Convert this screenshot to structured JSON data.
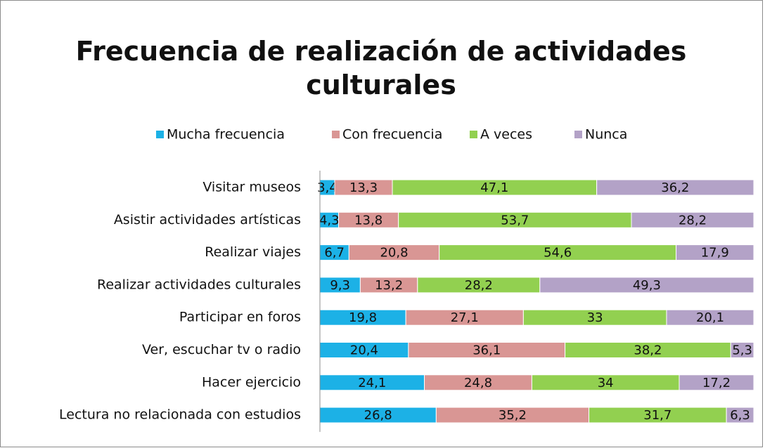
{
  "chart_data": {
    "type": "stacked_bar_horizontal",
    "title": "Frecuencia de realización de actividades culturales",
    "categories": [
      "Visitar museos",
      "Asistir actividades artísticas",
      "Realizar viajes",
      "Realizar actividades culturales",
      "Participar en foros",
      "Ver, escuchar tv o radio",
      "Hacer ejercicio",
      "Lectura no relacionada con estudios"
    ],
    "series": [
      {
        "name": "Mucha frecuencia",
        "color": "#1cb1e6",
        "values": [
          3.4,
          4.3,
          6.7,
          9.3,
          19.8,
          20.4,
          24.1,
          26.8
        ],
        "value_labels": [
          "3,4",
          "4,3",
          "6,7",
          "9,3",
          "19,8",
          "20,4",
          "24,1",
          "26,8"
        ]
      },
      {
        "name": "Con frecuencia",
        "color": "#d99694",
        "values": [
          13.3,
          13.8,
          20.8,
          13.2,
          27.1,
          36.1,
          24.8,
          35.2
        ],
        "value_labels": [
          "13,3",
          "13,8",
          "20,8",
          "13,2",
          "27,1",
          "36,1",
          "24,8",
          "35,2"
        ]
      },
      {
        "name": "A veces",
        "color": "#92d050",
        "values": [
          47.1,
          53.7,
          54.6,
          28.2,
          33,
          38.2,
          34,
          31.7
        ],
        "value_labels": [
          "47,1",
          "53,7",
          "54,6",
          "28,2",
          "33",
          "38,2",
          "34",
          "31,7"
        ]
      },
      {
        "name": "Nunca",
        "color": "#b3a2c7",
        "values": [
          36.2,
          28.2,
          17.9,
          49.3,
          20.1,
          5.3,
          17.2,
          6.3
        ],
        "value_labels": [
          "36,2",
          "28,2",
          "17,9",
          "49,3",
          "20,1",
          "5,3",
          "17,2",
          "6,3"
        ]
      }
    ],
    "legend": "top"
  }
}
